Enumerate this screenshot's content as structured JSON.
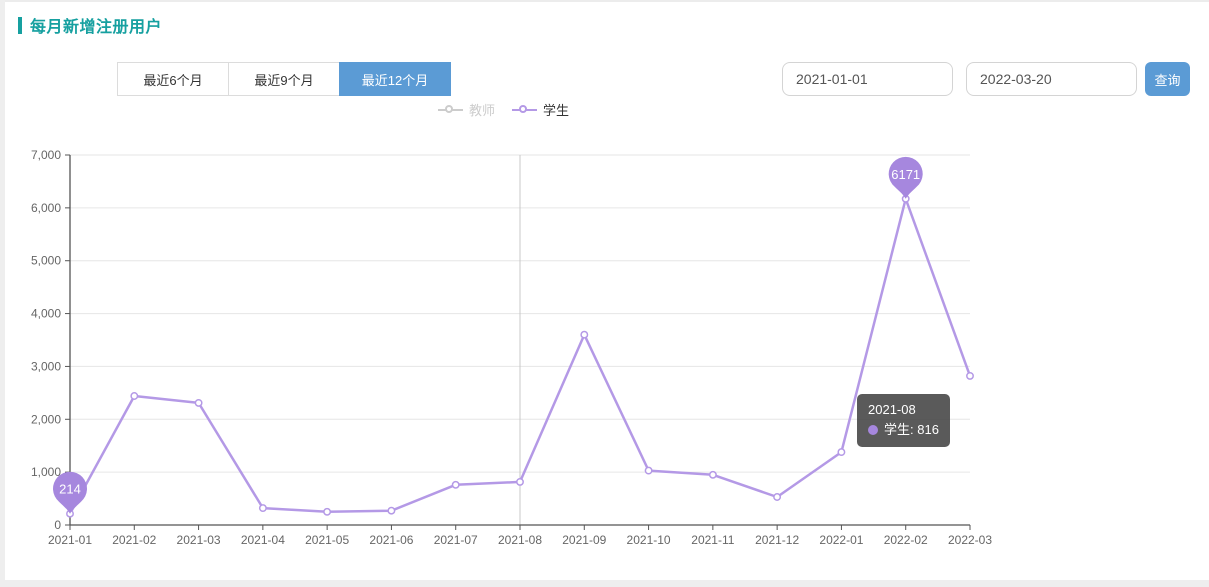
{
  "page": {
    "title": "每月新增注册用户"
  },
  "toolbar": {
    "range_buttons": [
      {
        "label": "最近6个月",
        "active": false
      },
      {
        "label": "最近9个月",
        "active": false
      },
      {
        "label": "最近12个月",
        "active": true
      }
    ],
    "start_date": "2021-01-01",
    "end_date": "2022-03-20",
    "query_label": "查询"
  },
  "legend": {
    "items": [
      {
        "label": "教师",
        "active": false
      },
      {
        "label": "学生",
        "active": true
      }
    ]
  },
  "tooltip": {
    "title": "2021-08",
    "series_label": "学生:",
    "value": "816"
  },
  "colors": {
    "accent_teal": "#16a0a0",
    "accent_blue": "#5b9bd5",
    "series_purple": "#b499e6",
    "pin_purple": "#a687de",
    "inactive_gray": "#cccccc",
    "grid_gray": "#e6e6e6",
    "axis_gray": "#555555"
  },
  "chart_data": {
    "type": "line",
    "title": "每月新增注册用户",
    "x": [
      "2021-01",
      "2021-02",
      "2021-03",
      "2021-04",
      "2021-05",
      "2021-06",
      "2021-07",
      "2021-08",
      "2021-09",
      "2021-10",
      "2021-11",
      "2021-12",
      "2022-01",
      "2022-02",
      "2022-03"
    ],
    "series": [
      {
        "name": "学生",
        "values": [
          214,
          2440,
          2310,
          320,
          250,
          270,
          760,
          816,
          3600,
          1030,
          950,
          530,
          1380,
          6171,
          2820
        ]
      },
      {
        "name": "教师",
        "values": null,
        "hidden": true
      }
    ],
    "ylim": [
      0,
      7000
    ],
    "ytick_step": 1000,
    "grid": true,
    "legend_position": "top-center",
    "marked_points": [
      {
        "x": "2021-01",
        "label": "214"
      },
      {
        "x": "2022-02",
        "label": "6171"
      }
    ],
    "axis_pointer_x": "2021-08"
  }
}
